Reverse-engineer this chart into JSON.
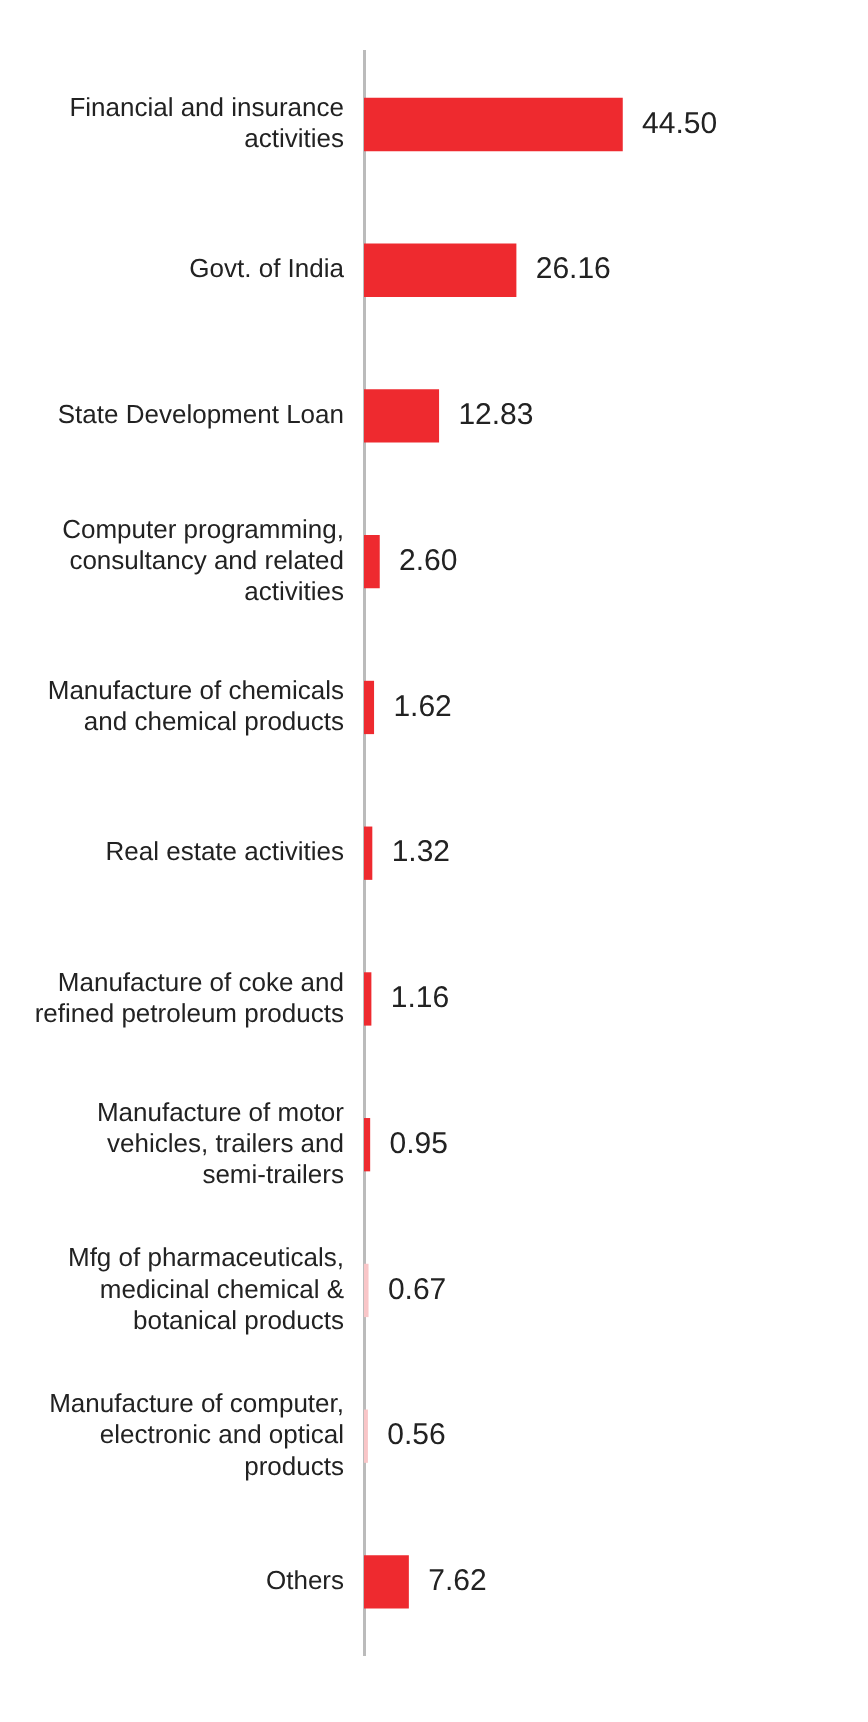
{
  "chart_data": {
    "type": "bar",
    "orientation": "horizontal",
    "categories": [
      "Financial and insurance activities",
      "Govt. of India",
      "State Development Loan",
      "Computer programming, consultancy and related activities",
      "Manufacture of chemicals and chemical products",
      "Real estate activities",
      "Manufacture of coke and refined petroleum products",
      "Manufacture of motor vehicles, trailers and semi-trailers",
      "Mfg of pharmaceuticals, medicinal chemical & botanical products",
      "Manufacture of computer, electronic and optical products",
      "Others"
    ],
    "values": [
      44.5,
      26.16,
      12.83,
      2.6,
      1.62,
      1.32,
      1.16,
      0.95,
      0.67,
      0.56,
      7.62
    ],
    "colors": [
      "#ee2a2f",
      "#ee2a2f",
      "#ee2a2f",
      "#ee2a2f",
      "#ee2a2f",
      "#ee2a2f",
      "#ee2a2f",
      "#ee2a2f",
      "#f9c6c8",
      "#f9c6c8",
      "#ee2a2f"
    ],
    "value_labels": [
      "44.50",
      "26.16",
      "12.83",
      "2.60",
      "1.62",
      "1.32",
      "1.16",
      "0.95",
      "0.67",
      "0.56",
      "7.62"
    ],
    "tick_labels": "y",
    "grid": false,
    "legend": false
  }
}
